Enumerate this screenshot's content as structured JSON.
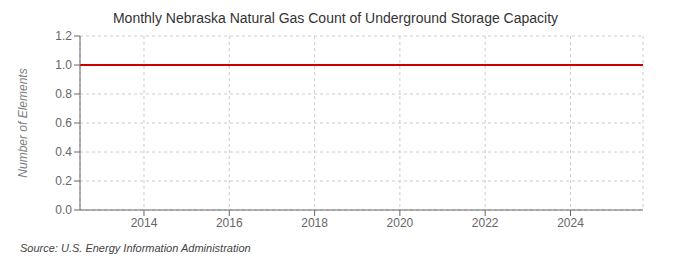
{
  "chart_data": {
    "type": "line",
    "title": "Monthly Nebraska Natural Gas Count of Underground Storage Capacity",
    "ylabel": "Number of Elements",
    "source": "Source: U.S. Energy Information Administration",
    "x": [
      2012.5,
      2025.7
    ],
    "values": [
      1.0,
      1.0
    ],
    "color": "#cc0000",
    "xlim": [
      2012.5,
      2025.7
    ],
    "xticks": [
      2014,
      2016,
      2018,
      2020,
      2022,
      2024
    ],
    "ylim": [
      0.0,
      1.2
    ],
    "yticks": [
      {
        "value": 0.0,
        "label": "0.0"
      },
      0.2,
      0.4,
      0.6,
      0.8,
      {
        "value": 1.0,
        "label": "1.0"
      },
      1.2
    ],
    "grid": true
  }
}
